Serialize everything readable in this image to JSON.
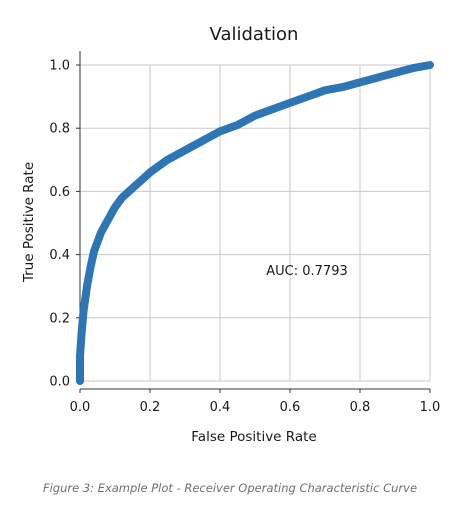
{
  "figure": {
    "caption": "Figure 3: Example Plot - Receiver Operating Characteristic Curve"
  },
  "chart_data": {
    "type": "line",
    "title": "Validation",
    "xlabel": "False Positive Rate",
    "ylabel": "True Positive Rate",
    "xlim": [
      0.0,
      1.0
    ],
    "ylim": [
      0.0,
      1.0
    ],
    "xticks": [
      "0.0",
      "0.2",
      "0.4",
      "0.6",
      "0.8",
      "1.0"
    ],
    "yticks": [
      "0.0",
      "0.2",
      "0.4",
      "0.6",
      "0.8",
      "1.0"
    ],
    "grid": true,
    "annotation": "AUC: 0.7793",
    "series": [
      {
        "color": "#2e75b6",
        "x": [
          0.0,
          0.0,
          0.005,
          0.01,
          0.02,
          0.03,
          0.04,
          0.05,
          0.06,
          0.08,
          0.1,
          0.12,
          0.15,
          0.18,
          0.2,
          0.25,
          0.3,
          0.35,
          0.4,
          0.45,
          0.5,
          0.55,
          0.6,
          0.65,
          0.7,
          0.75,
          0.8,
          0.85,
          0.9,
          0.95,
          1.0
        ],
        "y": [
          0.0,
          0.08,
          0.16,
          0.22,
          0.3,
          0.36,
          0.41,
          0.44,
          0.47,
          0.51,
          0.55,
          0.58,
          0.61,
          0.64,
          0.66,
          0.7,
          0.73,
          0.76,
          0.79,
          0.81,
          0.84,
          0.86,
          0.88,
          0.9,
          0.92,
          0.93,
          0.945,
          0.96,
          0.975,
          0.99,
          1.0
        ]
      }
    ]
  }
}
